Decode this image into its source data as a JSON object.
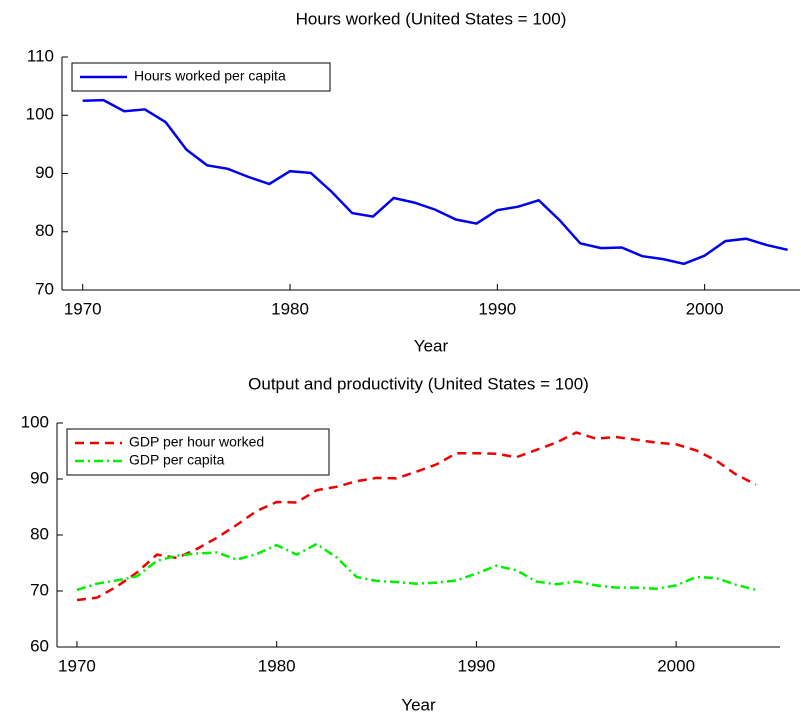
{
  "chart_data": [
    {
      "type": "line",
      "title": "Hours worked (United States = 100)",
      "x_label": "Year",
      "x": [
        1970,
        1971,
        1972,
        1973,
        1974,
        1975,
        1976,
        1977,
        1978,
        1979,
        1980,
        1981,
        1982,
        1983,
        1984,
        1985,
        1986,
        1987,
        1988,
        1989,
        1990,
        1991,
        1992,
        1993,
        1994,
        1995,
        1996,
        1997,
        1998,
        1999,
        2000,
        2001,
        2002,
        2003,
        2004
      ],
      "series": [
        {
          "name": "Hours worked per capita",
          "color": "#0000ee",
          "dash": "solid",
          "values": [
            102.5,
            102.6,
            100.7,
            101.0,
            98.8,
            94.1,
            91.4,
            90.8,
            89.4,
            88.2,
            90.4,
            90.1,
            86.9,
            83.2,
            82.6,
            85.8,
            85.0,
            83.8,
            82.1,
            81.4,
            83.7,
            84.3,
            85.4,
            82.0,
            78.0,
            77.2,
            77.3,
            75.8,
            75.3,
            74.5,
            75.9,
            78.4,
            78.8,
            77.7,
            76.9
          ]
        }
      ],
      "xlim": [
        1969,
        2004.6
      ],
      "xticks": [
        1970,
        1980,
        1990,
        2000
      ],
      "ylim": [
        70,
        110
      ],
      "yticks": [
        70,
        80,
        90,
        100,
        110
      ],
      "legend": "upper left"
    },
    {
      "type": "line",
      "title": "Output and productivity (United States = 100)",
      "x_label": "Year",
      "x": [
        1970,
        1971,
        1972,
        1973,
        1974,
        1975,
        1976,
        1977,
        1978,
        1979,
        1980,
        1981,
        1982,
        1983,
        1984,
        1985,
        1986,
        1987,
        1988,
        1989,
        1990,
        1991,
        1992,
        1993,
        1994,
        1995,
        1996,
        1997,
        1998,
        1999,
        2000,
        2001,
        2002,
        2003,
        2004
      ],
      "series": [
        {
          "name": "GDP per hour worked",
          "color": "#ee0000",
          "dash": "dashed",
          "values": [
            68.4,
            68.8,
            70.8,
            73.3,
            76.5,
            75.9,
            77.5,
            79.5,
            81.8,
            84.3,
            85.9,
            85.8,
            88.0,
            88.6,
            89.6,
            90.2,
            90.1,
            91.3,
            92.6,
            94.6,
            94.6,
            94.5,
            93.9,
            95.2,
            96.5,
            98.3,
            97.2,
            97.5,
            97.0,
            96.5,
            96.2,
            95.1,
            93.3,
            90.8,
            89.0
          ]
        },
        {
          "name": "GDP per capita",
          "color": "#00ee00",
          "dash": "dashdot",
          "values": [
            70.2,
            71.3,
            71.9,
            72.6,
            75.4,
            76.3,
            76.7,
            76.9,
            75.6,
            76.6,
            78.2,
            76.5,
            78.4,
            76.0,
            72.5,
            71.8,
            71.6,
            71.3,
            71.5,
            71.9,
            73.1,
            74.5,
            73.7,
            71.7,
            71.2,
            71.7,
            71.0,
            70.6,
            70.6,
            70.4,
            71.0,
            72.5,
            72.3,
            71.1,
            70.2
          ]
        }
      ],
      "xlim": [
        1969,
        2005.2
      ],
      "xticks": [
        1970,
        1980,
        1990,
        2000
      ],
      "ylim": [
        60,
        100
      ],
      "yticks": [
        60,
        70,
        80,
        90,
        100
      ],
      "legend": "upper left"
    }
  ]
}
